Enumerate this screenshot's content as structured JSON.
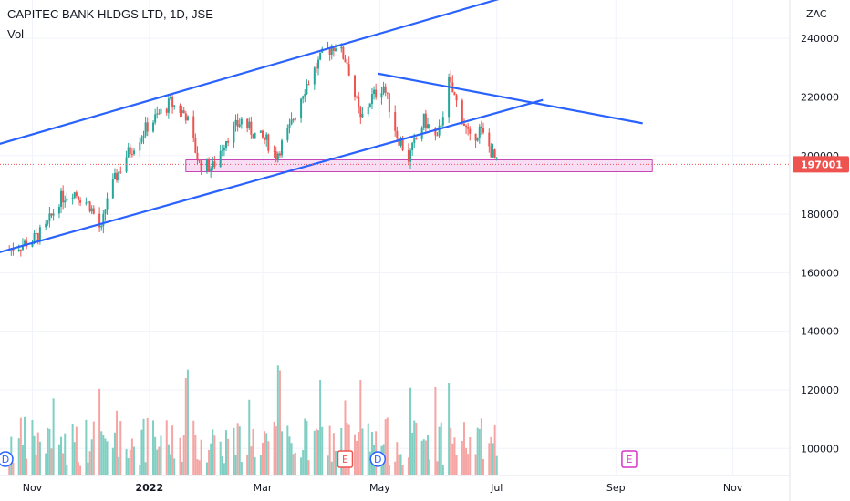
{
  "header": {
    "title": "CAPITEC BANK HLDGS LTD, 1D, JSE",
    "indicator": "Vol"
  },
  "colors": {
    "up": "#26a69a",
    "down": "#ef5350",
    "trendline": "#2962ff",
    "zone_fill": "#f3c6ec",
    "zone_stroke": "#b71ba4",
    "price_label_bg": "#ef5350",
    "grid": "#f0f3fa",
    "volume_up": "#7fcfc3",
    "volume_down": "#f5a5a3"
  },
  "chart_data": {
    "type": "candlestick",
    "currency": "ZAC",
    "last_price": "197001",
    "y_range": [
      92000,
      250000
    ],
    "y_ticks": [
      "240000",
      "220000",
      "200000",
      "180000",
      "160000",
      "140000",
      "120000",
      "100000"
    ],
    "x_ticks": [
      {
        "label": "Nov",
        "bold": false
      },
      {
        "label": "2022",
        "bold": true
      },
      {
        "label": "Mar",
        "bold": false
      },
      {
        "label": "May",
        "bold": false
      },
      {
        "label": "Jul",
        "bold": false
      },
      {
        "label": "Sep",
        "bold": false
      },
      {
        "label": "Nov",
        "bold": false
      }
    ],
    "price_path": [
      [
        "2021-10-20",
        168000
      ],
      [
        "2021-11-01",
        171000
      ],
      [
        "2021-11-08",
        175000
      ],
      [
        "2021-11-15",
        185000
      ],
      [
        "2021-11-22",
        188000
      ],
      [
        "2021-12-01",
        183000
      ],
      [
        "2021-12-07",
        174000
      ],
      [
        "2021-12-10",
        186000
      ],
      [
        "2021-12-20",
        200000
      ],
      [
        "2021-12-31",
        210000
      ],
      [
        "2022-01-12",
        218000
      ],
      [
        "2022-01-20",
        214000
      ],
      [
        "2022-01-27",
        197000
      ],
      [
        "2022-02-03",
        196000
      ],
      [
        "2022-02-10",
        206000
      ],
      [
        "2022-02-18",
        212000
      ],
      [
        "2022-02-25",
        207000
      ],
      [
        "2022-03-03",
        205000
      ],
      [
        "2022-03-08",
        200000
      ],
      [
        "2022-03-15",
        209000
      ],
      [
        "2022-03-22",
        222000
      ],
      [
        "2022-04-01",
        234000
      ],
      [
        "2022-04-08",
        238000
      ],
      [
        "2022-04-14",
        232000
      ],
      [
        "2022-04-21",
        212000
      ],
      [
        "2022-04-27",
        220000
      ],
      [
        "2022-05-03",
        224000
      ],
      [
        "2022-05-10",
        207000
      ],
      [
        "2022-05-16",
        199000
      ],
      [
        "2022-05-24",
        212000
      ],
      [
        "2022-05-31",
        205000
      ],
      [
        "2022-06-06",
        225000
      ],
      [
        "2022-06-13",
        213000
      ],
      [
        "2022-06-17",
        205000
      ],
      [
        "2022-06-22",
        209000
      ],
      [
        "2022-06-27",
        203000
      ],
      [
        "2022-07-01",
        197001
      ]
    ],
    "trendlines": [
      {
        "name": "channel-top",
        "points": [
          [
            "2021-10-15",
            204000
          ],
          [
            "2022-07-05",
            254000
          ]
        ]
      },
      {
        "name": "channel-bottom",
        "points": [
          [
            "2021-10-15",
            167000
          ],
          [
            "2022-07-25",
            219000
          ]
        ]
      },
      {
        "name": "descending",
        "points": [
          [
            "2022-04-30",
            228000
          ],
          [
            "2022-09-15",
            211000
          ]
        ]
      }
    ],
    "support_zone": {
      "from": "2022-01-20",
      "to": "2022-09-20",
      "low": 194500,
      "high": 198500
    },
    "events": [
      {
        "type": "D",
        "date": "2021-10-18",
        "kind": "dividend"
      },
      {
        "type": "E",
        "date": "2022-04-13",
        "kind": "earnings"
      },
      {
        "type": "D",
        "date": "2022-04-30",
        "kind": "dividend"
      },
      {
        "type": "E",
        "date": "2022-09-08",
        "kind": "earnings-future"
      }
    ]
  }
}
